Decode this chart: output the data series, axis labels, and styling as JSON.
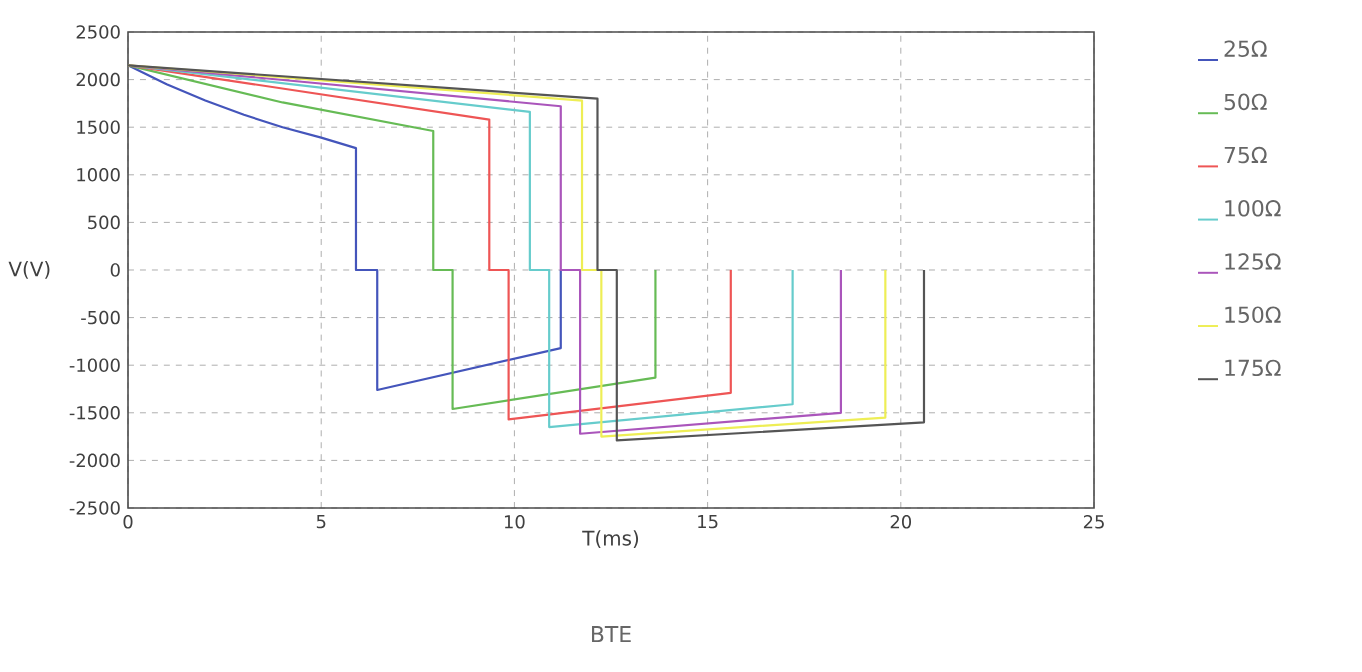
{
  "chart_data": {
    "type": "line",
    "title": "BTE",
    "xlabel": "T(ms)",
    "ylabel": "V(V)",
    "xlim": [
      0,
      25
    ],
    "ylim": [
      -2500,
      2500
    ],
    "xticks": [
      0,
      5,
      10,
      15,
      20,
      25
    ],
    "yticks": [
      -2500,
      -2000,
      -1500,
      -1000,
      -500,
      0,
      500,
      1000,
      1500,
      2000,
      2500
    ],
    "grid": true,
    "legend": "right",
    "series": [
      {
        "name": "25Ω",
        "color": "#4455bb",
        "x": [
          0,
          1,
          2,
          3,
          4,
          5,
          5.9,
          5.9,
          6.45,
          6.45,
          11.2,
          11.2
        ],
        "values": [
          2150,
          1950,
          1780,
          1630,
          1500,
          1390,
          1280,
          0,
          0,
          -1260,
          -820,
          0
        ]
      },
      {
        "name": "50Ω",
        "color": "#66bb55",
        "x": [
          0,
          4,
          7.9,
          7.9,
          8.4,
          8.4,
          13.65,
          13.65
        ],
        "values": [
          2150,
          1760,
          1460,
          0,
          0,
          -1460,
          -1130,
          0
        ]
      },
      {
        "name": "75Ω",
        "color": "#ee5555",
        "x": [
          0,
          9.35,
          9.35,
          9.85,
          9.85,
          15.6,
          15.6
        ],
        "values": [
          2150,
          1580,
          0,
          0,
          -1570,
          -1290,
          0
        ]
      },
      {
        "name": "100Ω",
        "color": "#66cccc",
        "x": [
          0,
          10.4,
          10.4,
          10.9,
          10.9,
          17.2,
          17.2
        ],
        "values": [
          2150,
          1660,
          0,
          0,
          -1650,
          -1410,
          0
        ]
      },
      {
        "name": "125Ω",
        "color": "#aa55bb",
        "x": [
          0,
          11.2,
          11.2,
          11.7,
          11.7,
          18.45,
          18.45
        ],
        "values": [
          2150,
          1720,
          0,
          0,
          -1720,
          -1500,
          0
        ]
      },
      {
        "name": "150Ω",
        "color": "#eeee55",
        "x": [
          0,
          11.75,
          11.75,
          12.25,
          12.25,
          19.6,
          19.6
        ],
        "values": [
          2150,
          1780,
          0,
          0,
          -1750,
          -1550,
          0
        ]
      },
      {
        "name": "175Ω",
        "color": "#555555",
        "x": [
          0,
          12.15,
          12.15,
          12.65,
          12.65,
          20.6,
          20.6
        ],
        "values": [
          2150,
          1800,
          0,
          0,
          -1790,
          -1600,
          0
        ]
      }
    ]
  }
}
